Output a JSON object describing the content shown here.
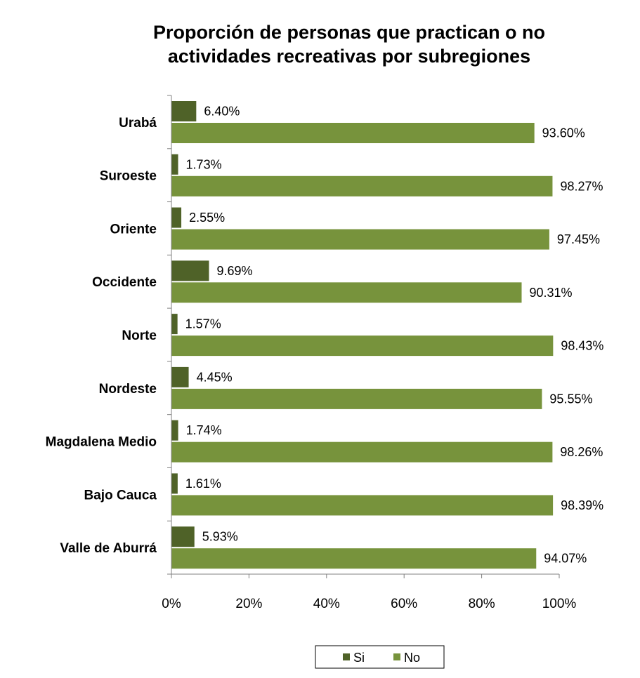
{
  "chart_data": {
    "type": "bar",
    "orientation": "horizontal",
    "title_lines": [
      "Proporción de personas que practican o no",
      "actividades recreativas por subregiones"
    ],
    "categories": [
      "Urabá",
      "Suroeste",
      "Oriente",
      "Occidente",
      "Norte",
      "Nordeste",
      "Magdalena Medio",
      "Bajo Cauca",
      "Valle de Aburrá"
    ],
    "series": [
      {
        "name": "Si",
        "color": "#4F6228",
        "values": [
          6.4,
          1.73,
          2.55,
          9.69,
          1.57,
          4.45,
          1.74,
          1.61,
          5.93
        ],
        "labels": [
          "6.40%",
          "1.73%",
          "2.55%",
          "9.69%",
          "1.57%",
          "4.45%",
          "1.74%",
          "1.61%",
          "5.93%"
        ]
      },
      {
        "name": "No",
        "color": "#77933C",
        "values": [
          93.6,
          98.27,
          97.45,
          90.31,
          98.43,
          95.55,
          98.26,
          98.39,
          94.07
        ],
        "labels": [
          "93.60%",
          "98.27%",
          "97.45%",
          "90.31%",
          "98.43%",
          "95.55%",
          "98.26%",
          "98.39%",
          "94.07%"
        ]
      }
    ],
    "xlim": [
      0,
      100
    ],
    "xticks": [
      "0%",
      "20%",
      "40%",
      "60%",
      "80%",
      "100%"
    ],
    "grid": false,
    "legend_position": "bottom"
  }
}
